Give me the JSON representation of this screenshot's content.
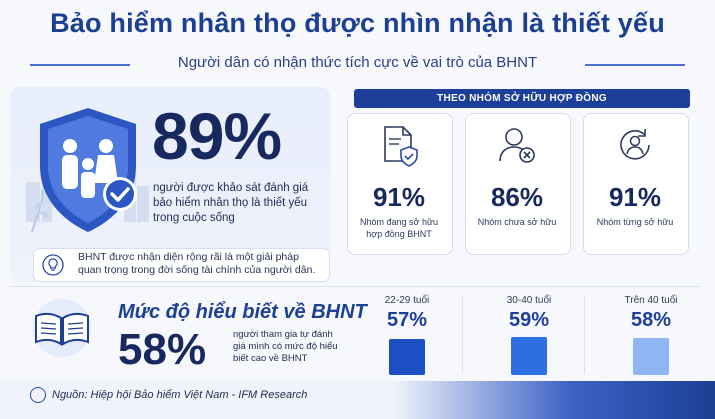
{
  "header": {
    "title": "Bảo hiểm nhân thọ được nhìn nhận là thiết yếu",
    "subtitle": "Người dân có nhận thức tích cực về vai trò của BHNT"
  },
  "main_stat": {
    "value": "89%",
    "description": "người được khảo sát đánh giá bảo hiểm nhân thọ là thiết yếu trong cuộc sống"
  },
  "note": {
    "text": "BHNT được nhận diện rộng rãi là một giải pháp quan trọng trong đời sống tài chính của người dân."
  },
  "ownership": {
    "header": "THEO NHÓM SỞ HỮU HỢP ĐỒNG",
    "groups": [
      {
        "value": "91%",
        "label": "Nhóm đang sở hữu hợp đồng BHNT",
        "icon": "document-shield-icon"
      },
      {
        "value": "86%",
        "label": "Nhóm chưa sở hữu",
        "icon": "person-x-icon"
      },
      {
        "value": "91%",
        "label": "Nhóm từng sở hữu",
        "icon": "person-refresh-icon"
      }
    ]
  },
  "knowledge": {
    "title": "Mức độ hiểu biết về BHNT",
    "value": "58%",
    "description": "người tham gia tự đánh giá mình có mức độ hiểu biết cao về BHNT",
    "age_groups": [
      {
        "age": "22-29 tuổi",
        "value": "57%",
        "fraction": 0.57,
        "color": "#1d4fc4"
      },
      {
        "age": "30-40 tuổi",
        "value": "59%",
        "fraction": 0.59,
        "color": "#2f6ee0"
      },
      {
        "age": "Trên 40 tuổi",
        "value": "58%",
        "fraction": 0.58,
        "color": "#8fb6f2"
      }
    ]
  },
  "footer": {
    "source": "Nguồn: Hiệp hội Bảo hiểm Việt Nam - IFM Research"
  }
}
